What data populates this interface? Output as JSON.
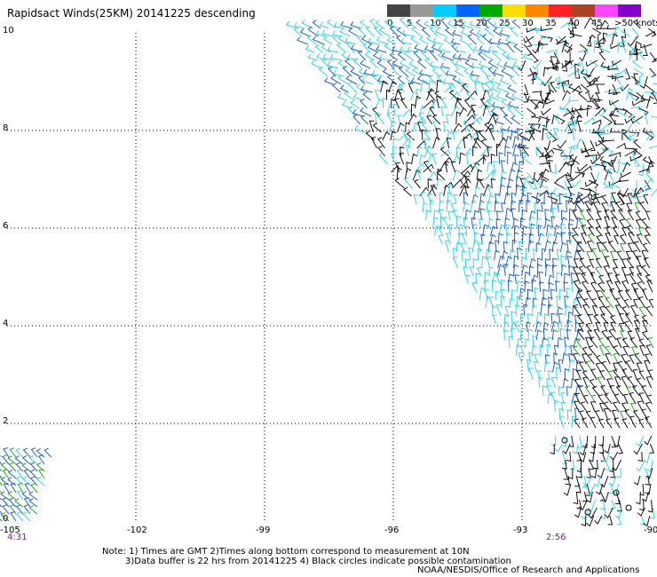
{
  "title": "Rapidsact Winds(25KM) 20141225 descending",
  "legend": {
    "labels": [
      "0",
      "5",
      "10",
      "15",
      "20",
      "25",
      "30",
      "35",
      "40",
      "45",
      ">50 knots"
    ],
    "colors": [
      "#444444",
      "#999999",
      "#00ccff",
      "#0066ff",
      "#00aa00",
      "#ffdd00",
      "#ff8800",
      "#ff2222",
      "#aa4422",
      "#ff44ff",
      "#8800cc"
    ]
  },
  "axes": {
    "x_ticks": [
      "-105",
      "-102",
      "-99",
      "-96",
      "-93",
      "-90"
    ],
    "y_ticks": [
      "0",
      "2",
      "4",
      "6",
      "8",
      "10"
    ]
  },
  "times": {
    "left": "4:31",
    "right": "2:56"
  },
  "notes": [
    "Note: 1) Times are GMT 2)Times along bottom correspond to measurement at 10N",
    "3)Data buffer is 22 hrs from 20141225 4) Black circles indicate possible contamination"
  ],
  "credit": "NOAA/NESDIS/Office of Research and Applications",
  "colors": {
    "light_blue": "#33d6f0",
    "blue": "#1f5fd0",
    "black": "#111111",
    "green": "#22aa22",
    "time": "#8a1a8a"
  }
}
